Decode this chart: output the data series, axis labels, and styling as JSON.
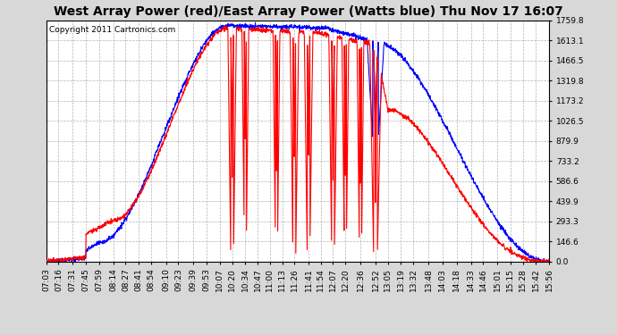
{
  "title": "West Array Power (red)/East Array Power (Watts blue) Thu Nov 17 16:07",
  "copyright": "Copyright 2011 Cartronics.com",
  "background_color": "#d8d8d8",
  "plot_bg_color": "#ffffff",
  "grid_color": "#aaaaaa",
  "red_color": "#ff0000",
  "blue_color": "#0000ff",
  "ylim": [
    0.0,
    1759.8
  ],
  "yticks": [
    0.0,
    146.6,
    293.3,
    439.9,
    586.6,
    733.2,
    879.9,
    1026.5,
    1173.2,
    1319.8,
    1466.5,
    1613.1,
    1759.8
  ],
  "xtick_labels": [
    "07:03",
    "07:16",
    "07:31",
    "07:45",
    "07:59",
    "08:14",
    "08:27",
    "08:41",
    "08:54",
    "09:10",
    "09:23",
    "09:39",
    "09:53",
    "10:07",
    "10:20",
    "10:34",
    "10:47",
    "11:00",
    "11:13",
    "11:26",
    "11:41",
    "11:54",
    "12:07",
    "12:20",
    "12:36",
    "12:52",
    "13:05",
    "13:19",
    "13:32",
    "13:48",
    "14:03",
    "14:18",
    "14:33",
    "14:46",
    "15:01",
    "15:15",
    "15:28",
    "15:42",
    "15:56"
  ],
  "title_fontsize": 10,
  "copyright_fontsize": 6.5,
  "axis_fontsize": 6.5,
  "linewidth": 0.8
}
